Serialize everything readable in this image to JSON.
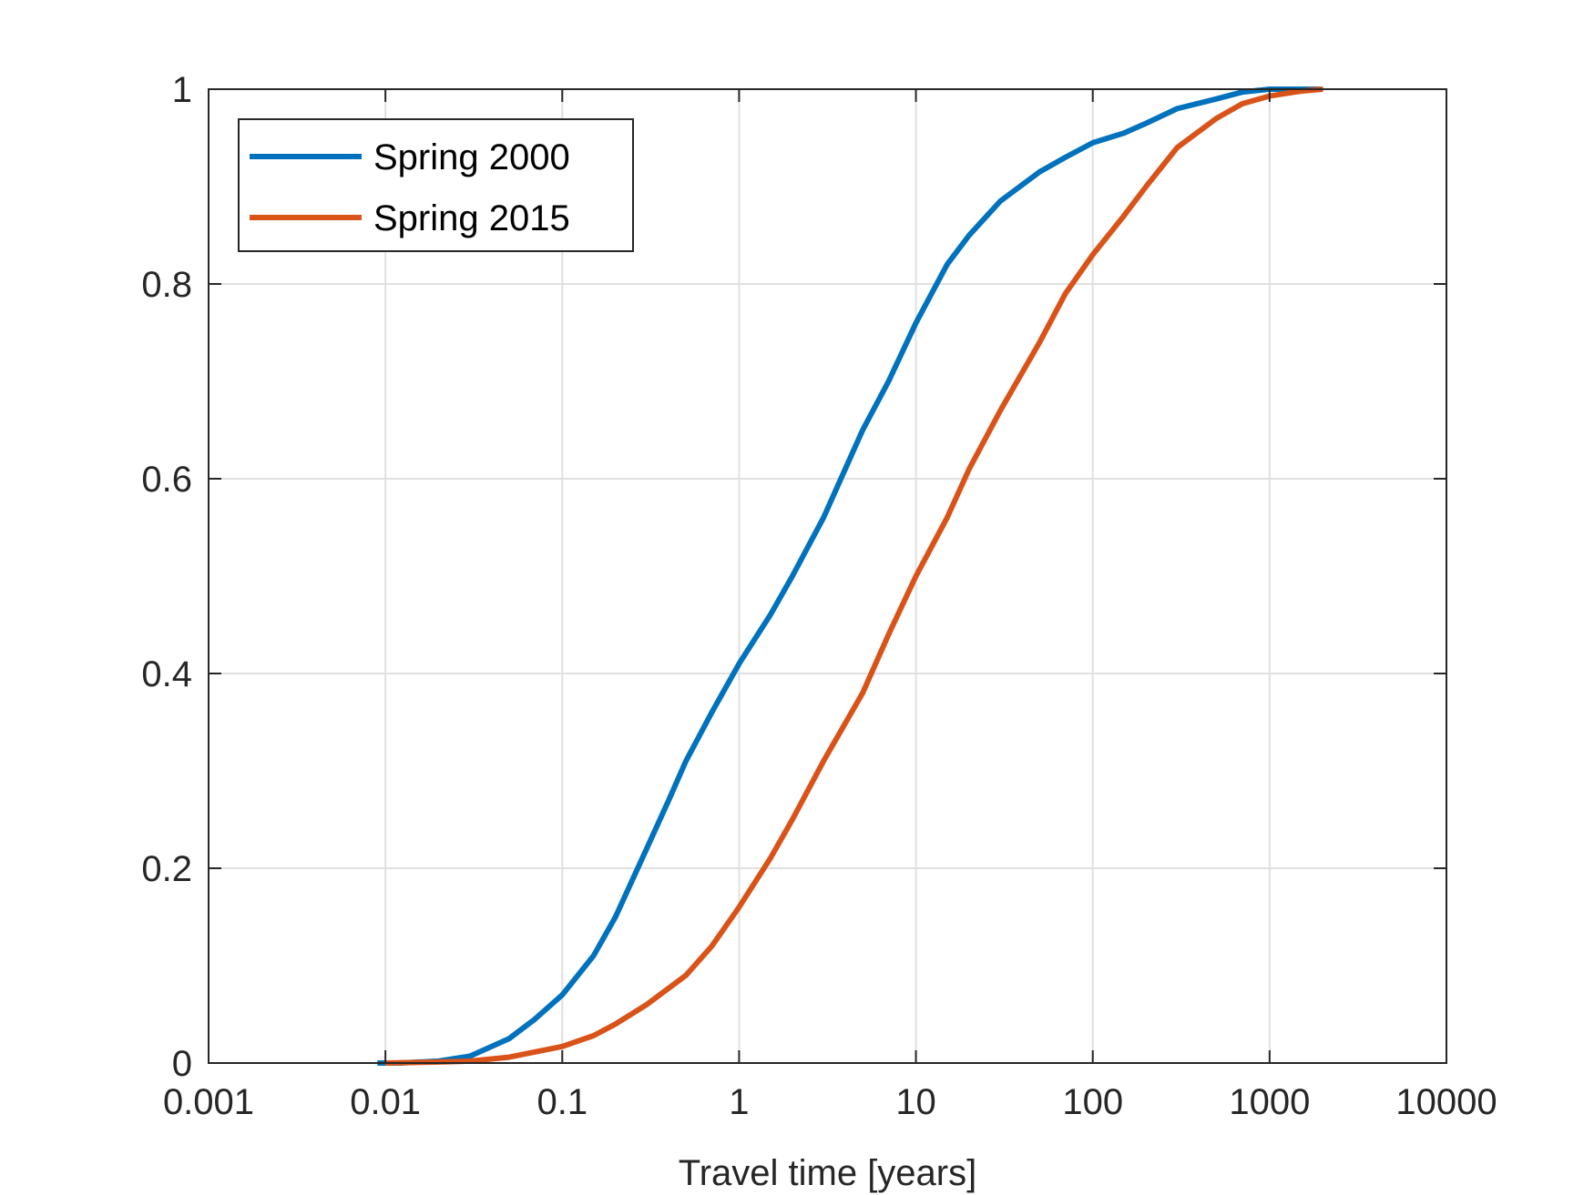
{
  "chart_data": {
    "type": "line",
    "title": "",
    "xlabel": "Travel time [years]",
    "ylabel": "",
    "xscale": "log",
    "xlim": [
      0.001,
      10000
    ],
    "ylim": [
      0,
      1
    ],
    "grid": true,
    "legend_position": "top-left",
    "x_ticks": [
      0.001,
      0.01,
      0.1,
      1,
      10,
      100,
      1000,
      10000
    ],
    "x_tick_labels": [
      "0.001",
      "0.01",
      "0.1",
      "1",
      "10",
      "100",
      "1000",
      "10000"
    ],
    "y_ticks": [
      0,
      0.2,
      0.4,
      0.6,
      0.8,
      1
    ],
    "y_tick_labels": [
      "0",
      "0.2",
      "0.4",
      "0.6",
      "0.8",
      "1"
    ],
    "series": [
      {
        "name": "Spring 2000",
        "color": "#0072BD",
        "points": [
          [
            0.009,
            0.0
          ],
          [
            0.012,
            0.0
          ],
          [
            0.02,
            0.002
          ],
          [
            0.03,
            0.007
          ],
          [
            0.05,
            0.025
          ],
          [
            0.07,
            0.045
          ],
          [
            0.1,
            0.07
          ],
          [
            0.15,
            0.11
          ],
          [
            0.2,
            0.15
          ],
          [
            0.3,
            0.22
          ],
          [
            0.4,
            0.27
          ],
          [
            0.5,
            0.31
          ],
          [
            0.7,
            0.36
          ],
          [
            1.0,
            0.41
          ],
          [
            1.5,
            0.46
          ],
          [
            2.0,
            0.5
          ],
          [
            3.0,
            0.56
          ],
          [
            5.0,
            0.65
          ],
          [
            7.0,
            0.7
          ],
          [
            10.0,
            0.76
          ],
          [
            15.0,
            0.82
          ],
          [
            20.0,
            0.85
          ],
          [
            30.0,
            0.885
          ],
          [
            50.0,
            0.915
          ],
          [
            70.0,
            0.93
          ],
          [
            100.0,
            0.945
          ],
          [
            150.0,
            0.955
          ],
          [
            200.0,
            0.965
          ],
          [
            300.0,
            0.98
          ],
          [
            500.0,
            0.99
          ],
          [
            700.0,
            0.997
          ],
          [
            1000.0,
            1.0
          ],
          [
            2000.0,
            1.0
          ]
        ]
      },
      {
        "name": "Spring 2015",
        "color": "#D95319",
        "points": [
          [
            0.01,
            0.0
          ],
          [
            0.02,
            0.001
          ],
          [
            0.03,
            0.002
          ],
          [
            0.05,
            0.006
          ],
          [
            0.1,
            0.017
          ],
          [
            0.15,
            0.028
          ],
          [
            0.2,
            0.04
          ],
          [
            0.3,
            0.06
          ],
          [
            0.5,
            0.09
          ],
          [
            0.7,
            0.12
          ],
          [
            1.0,
            0.16
          ],
          [
            1.5,
            0.21
          ],
          [
            2.0,
            0.25
          ],
          [
            3.0,
            0.31
          ],
          [
            5.0,
            0.38
          ],
          [
            7.0,
            0.44
          ],
          [
            10.0,
            0.5
          ],
          [
            15.0,
            0.56
          ],
          [
            20.0,
            0.61
          ],
          [
            30.0,
            0.67
          ],
          [
            50.0,
            0.74
          ],
          [
            70.0,
            0.79
          ],
          [
            100.0,
            0.83
          ],
          [
            150.0,
            0.87
          ],
          [
            200.0,
            0.9
          ],
          [
            300.0,
            0.94
          ],
          [
            500.0,
            0.97
          ],
          [
            700.0,
            0.985
          ],
          [
            1000.0,
            0.993
          ],
          [
            1500.0,
            0.998
          ],
          [
            2000.0,
            1.0
          ]
        ]
      }
    ]
  }
}
